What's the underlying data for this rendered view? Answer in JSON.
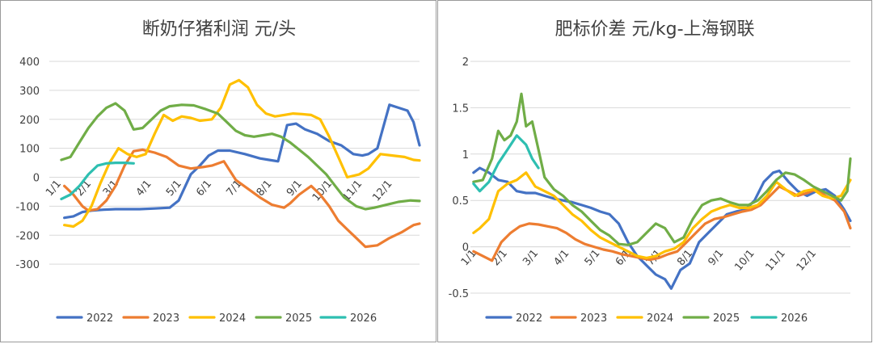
{
  "chart_data": [
    {
      "type": "line",
      "title": "断奶仔猪利润 元/头",
      "xlabel": "",
      "ylabel": "",
      "ylim": [
        -400,
        400
      ],
      "yticks": [
        400,
        300,
        200,
        100,
        0,
        -100,
        -200,
        -300
      ],
      "x_range": [
        0,
        12.3
      ],
      "grid": true,
      "legend_position": "bottom",
      "x_tick_labels": [
        {
          "x": 0.4,
          "label": "1/1"
        },
        {
          "x": 1.4,
          "label": "2/1"
        },
        {
          "x": 2.3,
          "label": "3/1"
        },
        {
          "x": 3.4,
          "label": "4/1"
        },
        {
          "x": 4.4,
          "label": "5/1"
        },
        {
          "x": 5.4,
          "label": "6/1"
        },
        {
          "x": 6.4,
          "label": "7/1"
        },
        {
          "x": 7.4,
          "label": "8/1"
        },
        {
          "x": 8.4,
          "label": "9/1"
        },
        {
          "x": 9.4,
          "label": "10/1"
        },
        {
          "x": 10.4,
          "label": "11/1"
        },
        {
          "x": 11.4,
          "label": "12/1"
        }
      ],
      "series": [
        {
          "name": "2022",
          "color": "#4472C4",
          "x": [
            0.5,
            0.8,
            1.1,
            1.4,
            1.8,
            2.2,
            2.6,
            3.0,
            3.5,
            4.0,
            4.3,
            4.7,
            5.0,
            5.3,
            5.6,
            6.0,
            6.5,
            7.0,
            7.3,
            7.6,
            7.9,
            8.2,
            8.5,
            8.9,
            9.3,
            9.7,
            10.1,
            10.4,
            10.6,
            10.9,
            11.3,
            11.6,
            11.9,
            12.1,
            12.3
          ],
          "y": [
            -140,
            -135,
            -120,
            -115,
            -112,
            -110,
            -110,
            -110,
            -108,
            -105,
            -80,
            10,
            40,
            75,
            92,
            92,
            80,
            65,
            60,
            55,
            180,
            185,
            165,
            150,
            125,
            110,
            80,
            75,
            80,
            100,
            250,
            240,
            230,
            190,
            110
          ]
        },
        {
          "name": "2023",
          "color": "#ED7D31",
          "x": [
            0.5,
            0.8,
            1.1,
            1.3,
            1.6,
            1.9,
            2.2,
            2.5,
            2.8,
            3.1,
            3.5,
            3.9,
            4.3,
            4.7,
            5.1,
            5.4,
            5.8,
            6.2,
            6.6,
            7.0,
            7.4,
            7.8,
            8.0,
            8.3,
            8.7,
            9.0,
            9.3,
            9.6,
            9.9,
            10.2,
            10.5,
            10.9,
            11.3,
            11.7,
            12.1,
            12.3
          ],
          "y": [
            -30,
            -60,
            -100,
            -115,
            -110,
            -80,
            -30,
            40,
            90,
            95,
            85,
            70,
            40,
            30,
            35,
            40,
            55,
            -10,
            -40,
            -70,
            -95,
            -105,
            -90,
            -60,
            -30,
            -60,
            -100,
            -150,
            -180,
            -210,
            -240,
            -235,
            -210,
            -190,
            -165,
            -160
          ]
        },
        {
          "name": "2024",
          "color": "#FFC000",
          "x": [
            0.5,
            0.8,
            1.1,
            1.4,
            1.7,
            2.0,
            2.3,
            2.6,
            2.9,
            3.2,
            3.5,
            3.8,
            4.1,
            4.4,
            4.7,
            5.0,
            5.4,
            5.7,
            6.0,
            6.3,
            6.6,
            6.9,
            7.2,
            7.5,
            7.8,
            8.1,
            8.4,
            8.7,
            9.0,
            9.3,
            9.6,
            9.9,
            10.3,
            10.6,
            11.0,
            11.4,
            11.8,
            12.1,
            12.3
          ],
          "y": [
            -165,
            -170,
            -150,
            -100,
            -20,
            50,
            100,
            80,
            70,
            80,
            150,
            215,
            195,
            210,
            205,
            195,
            200,
            240,
            320,
            335,
            310,
            250,
            220,
            210,
            215,
            220,
            218,
            215,
            200,
            140,
            70,
            0,
            10,
            30,
            80,
            75,
            70,
            60,
            58
          ]
        },
        {
          "name": "2025",
          "color": "#70AD47",
          "x": [
            0.4,
            0.7,
            1.0,
            1.3,
            1.6,
            1.9,
            2.2,
            2.5,
            2.8,
            3.1,
            3.4,
            3.7,
            4.0,
            4.4,
            4.8,
            5.2,
            5.6,
            5.9,
            6.2,
            6.5,
            6.8,
            7.1,
            7.4,
            7.7,
            8.0,
            8.3,
            8.6,
            8.9,
            9.2,
            9.5,
            9.8,
            10.2,
            10.5,
            10.8,
            11.2,
            11.6,
            12.0,
            12.3
          ],
          "y": [
            60,
            70,
            120,
            170,
            210,
            240,
            255,
            230,
            165,
            170,
            200,
            230,
            245,
            250,
            248,
            235,
            220,
            190,
            160,
            145,
            140,
            145,
            150,
            140,
            120,
            95,
            70,
            40,
            10,
            -30,
            -70,
            -100,
            -110,
            -105,
            -95,
            -85,
            -80,
            -82
          ]
        },
        {
          "name": "2026",
          "color": "#2EBFB1",
          "x": [
            0.4,
            0.7,
            1.0,
            1.3,
            1.6,
            1.9,
            2.2,
            2.5,
            2.8
          ],
          "y": [
            -75,
            -60,
            -30,
            10,
            40,
            48,
            50,
            50,
            48
          ]
        }
      ]
    },
    {
      "type": "line",
      "title": "肥标价差 元/kg-上海钢联",
      "xlabel": "",
      "ylabel": "",
      "ylim": [
        -0.5,
        2
      ],
      "yticks": [
        2,
        1.5,
        1,
        0.5,
        0,
        -0.5
      ],
      "ytick_labels": [
        "2",
        "1.5",
        "1",
        "0.5",
        "0",
        "-0.5"
      ],
      "x_range": [
        0,
        12.3
      ],
      "grid": true,
      "legend_position": "bottom",
      "x_tick_labels": [
        {
          "x": 0.2,
          "label": "1/1"
        },
        {
          "x": 1.2,
          "label": "2/1"
        },
        {
          "x": 2.2,
          "label": "3/1"
        },
        {
          "x": 3.2,
          "label": "4/1"
        },
        {
          "x": 4.2,
          "label": "5/1"
        },
        {
          "x": 5.2,
          "label": "6/1"
        },
        {
          "x": 6.2,
          "label": "7/1"
        },
        {
          "x": 7.2,
          "label": "8/1"
        },
        {
          "x": 8.2,
          "label": "9/1"
        },
        {
          "x": 9.2,
          "label": "10/1"
        },
        {
          "x": 10.2,
          "label": "11/1"
        },
        {
          "x": 11.2,
          "label": "12/1"
        }
      ],
      "series": [
        {
          "name": "2022",
          "color": "#4472C4",
          "x": [
            0.1,
            0.3,
            0.6,
            0.9,
            1.2,
            1.5,
            1.8,
            2.1,
            2.4,
            2.7,
            3.0,
            3.3,
            3.6,
            3.9,
            4.2,
            4.5,
            4.8,
            5.1,
            5.4,
            5.7,
            6.0,
            6.3,
            6.5,
            6.8,
            7.1,
            7.4,
            7.7,
            8.0,
            8.3,
            8.6,
            8.9,
            9.2,
            9.5,
            9.8,
            10.0,
            10.3,
            10.6,
            10.9,
            11.2,
            11.5,
            11.8,
            12.1,
            12.3
          ],
          "y": [
            0.8,
            0.85,
            0.8,
            0.72,
            0.7,
            0.6,
            0.58,
            0.58,
            0.55,
            0.52,
            0.5,
            0.48,
            0.45,
            0.42,
            0.38,
            0.35,
            0.25,
            0.05,
            -0.1,
            -0.2,
            -0.3,
            -0.35,
            -0.45,
            -0.25,
            -0.18,
            0.05,
            0.15,
            0.25,
            0.35,
            0.38,
            0.4,
            0.5,
            0.7,
            0.8,
            0.82,
            0.7,
            0.6,
            0.55,
            0.6,
            0.62,
            0.55,
            0.4,
            0.28
          ]
        },
        {
          "name": "2023",
          "color": "#ED7D31",
          "x": [
            0.1,
            0.4,
            0.7,
            1.0,
            1.3,
            1.6,
            1.9,
            2.2,
            2.5,
            2.8,
            3.1,
            3.4,
            3.7,
            4.0,
            4.3,
            4.6,
            4.9,
            5.2,
            5.5,
            5.8,
            6.1,
            6.4,
            6.7,
            7.0,
            7.3,
            7.6,
            7.9,
            8.2,
            8.5,
            8.8,
            9.1,
            9.4,
            9.7,
            10.0,
            10.3,
            10.6,
            10.9,
            11.2,
            11.5,
            11.8,
            12.1,
            12.3
          ],
          "y": [
            -0.05,
            -0.1,
            -0.15,
            0.05,
            0.15,
            0.22,
            0.25,
            0.24,
            0.22,
            0.2,
            0.15,
            0.08,
            0.03,
            0.0,
            -0.03,
            -0.05,
            -0.08,
            -0.1,
            -0.12,
            -0.14,
            -0.12,
            -0.08,
            -0.05,
            0.05,
            0.15,
            0.25,
            0.3,
            0.32,
            0.35,
            0.38,
            0.4,
            0.45,
            0.55,
            0.65,
            0.6,
            0.55,
            0.58,
            0.62,
            0.55,
            0.5,
            0.38,
            0.2
          ]
        },
        {
          "name": "2024",
          "color": "#FFC000",
          "x": [
            0.1,
            0.3,
            0.6,
            0.9,
            1.2,
            1.5,
            1.8,
            2.1,
            2.4,
            2.7,
            3.0,
            3.3,
            3.6,
            3.9,
            4.2,
            4.5,
            4.8,
            5.1,
            5.4,
            5.7,
            6.0,
            6.3,
            6.6,
            6.9,
            7.2,
            7.5,
            7.8,
            8.1,
            8.4,
            8.7,
            9.0,
            9.3,
            9.6,
            9.9,
            10.2,
            10.5,
            10.8,
            11.1,
            11.4,
            11.7,
            12.0,
            12.3
          ],
          "y": [
            0.15,
            0.2,
            0.3,
            0.6,
            0.68,
            0.72,
            0.8,
            0.65,
            0.6,
            0.55,
            0.45,
            0.35,
            0.28,
            0.18,
            0.1,
            0.05,
            0.0,
            -0.05,
            -0.1,
            -0.12,
            -0.1,
            -0.05,
            -0.02,
            0.05,
            0.2,
            0.3,
            0.38,
            0.42,
            0.45,
            0.42,
            0.42,
            0.45,
            0.55,
            0.7,
            0.62,
            0.55,
            0.6,
            0.62,
            0.55,
            0.52,
            0.55,
            0.72
          ]
        },
        {
          "name": "2025",
          "color": "#70AD47",
          "x": [
            0.1,
            0.4,
            0.7,
            0.9,
            1.1,
            1.3,
            1.5,
            1.65,
            1.8,
            2.0,
            2.2,
            2.4,
            2.7,
            3.0,
            3.3,
            3.6,
            3.9,
            4.2,
            4.5,
            4.8,
            5.1,
            5.4,
            5.7,
            6.0,
            6.3,
            6.6,
            6.9,
            7.2,
            7.5,
            7.8,
            8.1,
            8.4,
            8.7,
            9.0,
            9.3,
            9.6,
            9.9,
            10.2,
            10.5,
            10.8,
            11.1,
            11.4,
            11.7,
            12.0,
            12.2,
            12.3
          ],
          "y": [
            0.7,
            0.72,
            0.95,
            1.25,
            1.15,
            1.2,
            1.35,
            1.65,
            1.3,
            1.35,
            1.05,
            0.75,
            0.62,
            0.55,
            0.45,
            0.38,
            0.28,
            0.18,
            0.12,
            0.03,
            0.02,
            0.05,
            0.15,
            0.25,
            0.2,
            0.05,
            0.1,
            0.3,
            0.45,
            0.5,
            0.52,
            0.48,
            0.45,
            0.45,
            0.5,
            0.6,
            0.72,
            0.8,
            0.78,
            0.72,
            0.65,
            0.6,
            0.55,
            0.5,
            0.6,
            0.95
          ]
        },
        {
          "name": "2026",
          "color": "#2EBFB1",
          "x": [
            0.1,
            0.3,
            0.6,
            0.9,
            1.2,
            1.5,
            1.8,
            2.0,
            2.2
          ],
          "y": [
            0.68,
            0.6,
            0.7,
            0.9,
            1.05,
            1.2,
            1.1,
            0.95,
            0.85
          ]
        }
      ]
    }
  ]
}
